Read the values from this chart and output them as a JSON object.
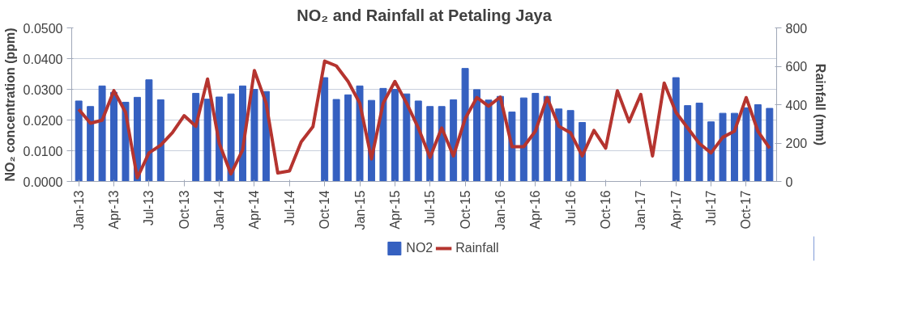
{
  "chart_data": {
    "type": "bar",
    "title": "NO₂ and Rainfall at Petaling Jaya",
    "ylabel": "NO₂ concentration (ppm)",
    "y2label": "Rainfall (mm)",
    "categories": [
      "Jan-13",
      null,
      null,
      "Apr-13",
      null,
      null,
      "Jul-13",
      null,
      null,
      "Oct-13",
      null,
      null,
      "Jan-14",
      null,
      null,
      "Apr-14",
      null,
      null,
      "Jul-14",
      null,
      null,
      "Oct-14",
      null,
      null,
      "Jan-15",
      null,
      null,
      "Apr-15",
      null,
      null,
      "Jul-15",
      null,
      null,
      "Oct-15",
      null,
      null,
      "Jan-16",
      null,
      null,
      "Apr-16",
      null,
      null,
      "Jul-16",
      null,
      null,
      "Oct-16",
      null,
      null,
      "Jan-17",
      null,
      null,
      "Apr-17",
      null,
      null,
      "Jul-17",
      null,
      null,
      "Oct-17",
      null,
      null
    ],
    "series": [
      {
        "name": "NO2",
        "color": "#3560c0",
        "values": [
          0.0262,
          0.0244,
          0.0311,
          0.029,
          0.0258,
          0.0274,
          0.0331,
          0.0266,
          null,
          null,
          0.0287,
          0.0268,
          0.0275,
          0.0285,
          0.0311,
          0.03,
          0.0293,
          null,
          null,
          null,
          null,
          0.0338,
          0.0267,
          0.0282,
          0.0311,
          0.0264,
          0.0303,
          0.03,
          0.0285,
          0.0262,
          0.0244,
          0.0244,
          0.0266,
          0.0368,
          0.0299,
          0.0265,
          0.0277,
          0.0226,
          0.0272,
          0.0287,
          0.0277,
          0.0236,
          0.0231,
          0.0192,
          null,
          null,
          null,
          null,
          null,
          null,
          null,
          0.0338,
          0.0247,
          0.0255,
          0.0194,
          0.0222,
          0.0222,
          0.024,
          0.025,
          0.0238
        ]
      },
      {
        "name": "Rainfall",
        "type": "line",
        "axis": "y2",
        "color": "#b5342f",
        "values": [
          376,
          303,
          319,
          473,
          360,
          19,
          149,
          189,
          254,
          343,
          287,
          534,
          198,
          39,
          165,
          578,
          408,
          44,
          55,
          206,
          285,
          627,
          602,
          521,
          408,
          117,
          408,
          521,
          408,
          279,
          125,
          279,
          133,
          327,
          437,
          392,
          440,
          181,
          181,
          262,
          437,
          287,
          254,
          133,
          266,
          173,
          473,
          311,
          453,
          133,
          513,
          360,
          279,
          198,
          149,
          230,
          262,
          437,
          262,
          173
        ]
      }
    ],
    "ylim": [
      0,
      0.05
    ],
    "yticks": [
      {
        "value": 0,
        "label": "0.0000"
      },
      {
        "value": 0.01,
        "label": "0.0100"
      },
      {
        "value": 0.02,
        "label": "0.0200"
      },
      {
        "value": 0.03,
        "label": "0.0300"
      },
      {
        "value": 0.04,
        "label": "0.0400"
      },
      {
        "value": 0.05,
        "label": "0.0500"
      }
    ],
    "y2lim": [
      0,
      800
    ],
    "y2ticks": [
      0,
      200,
      400,
      600,
      800
    ],
    "grid": "y",
    "legend": "bottom"
  }
}
